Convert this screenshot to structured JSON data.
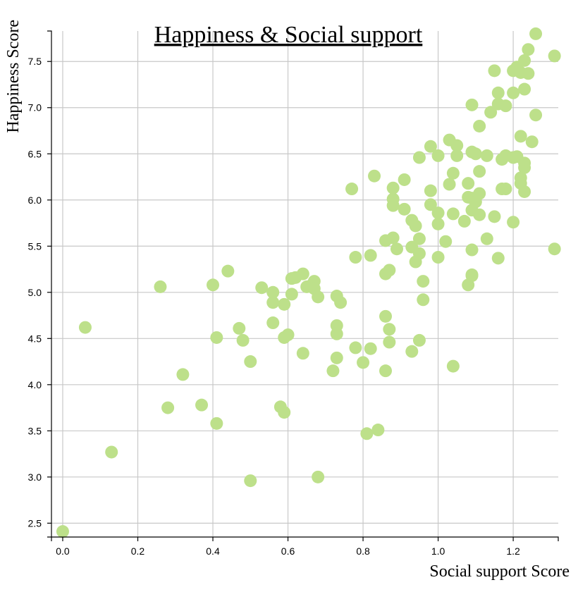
{
  "chart_data": {
    "type": "scatter",
    "title": "Happiness & Social support",
    "xlabel": "Social support Score",
    "ylabel": "Happiness Score",
    "xlim": [
      -0.03,
      1.32
    ],
    "ylim": [
      2.35,
      7.83
    ],
    "x_ticks": [
      "0.0",
      "0.2",
      "0.4",
      "0.6",
      "0.8",
      "1.0",
      "1.2"
    ],
    "y_ticks": [
      "2.5",
      "3.0",
      "3.5",
      "4.0",
      "4.5",
      "5.0",
      "5.5",
      "6.0",
      "6.5",
      "7.0",
      "7.5"
    ],
    "x_tick_values": [
      0.0,
      0.2,
      0.4,
      0.6,
      0.8,
      1.0,
      1.2
    ],
    "y_tick_values": [
      2.5,
      3.0,
      3.5,
      4.0,
      4.5,
      5.0,
      5.5,
      6.0,
      6.5,
      7.0,
      7.5
    ],
    "grid": true,
    "point_color": "#bde08a",
    "points": [
      [
        1.26,
        7.8
      ],
      [
        1.31,
        7.56
      ],
      [
        1.24,
        7.63
      ],
      [
        1.23,
        7.51
      ],
      [
        1.21,
        7.44
      ],
      [
        1.2,
        7.4
      ],
      [
        1.22,
        7.38
      ],
      [
        1.24,
        7.37
      ],
      [
        1.15,
        7.4
      ],
      [
        1.23,
        7.2
      ],
      [
        1.2,
        7.16
      ],
      [
        1.16,
        7.16
      ],
      [
        1.16,
        7.04
      ],
      [
        1.18,
        7.02
      ],
      [
        1.09,
        7.03
      ],
      [
        1.14,
        6.95
      ],
      [
        1.26,
        6.92
      ],
      [
        1.11,
        6.8
      ],
      [
        1.22,
        6.69
      ],
      [
        1.25,
        6.63
      ],
      [
        1.03,
        6.65
      ],
      [
        1.05,
        6.59
      ],
      [
        0.98,
        6.58
      ],
      [
        1.09,
        6.52
      ],
      [
        1.1,
        6.5
      ],
      [
        1.13,
        6.48
      ],
      [
        1.18,
        6.48
      ],
      [
        1.21,
        6.47
      ],
      [
        1.2,
        6.46
      ],
      [
        1.17,
        6.44
      ],
      [
        0.95,
        6.46
      ],
      [
        1.0,
        6.48
      ],
      [
        1.05,
        6.48
      ],
      [
        1.23,
        6.4
      ],
      [
        1.23,
        6.35
      ],
      [
        1.11,
        6.31
      ],
      [
        1.04,
        6.29
      ],
      [
        0.83,
        6.26
      ],
      [
        1.22,
        6.24
      ],
      [
        1.22,
        6.18
      ],
      [
        0.91,
        6.22
      ],
      [
        1.08,
        6.18
      ],
      [
        1.03,
        6.17
      ],
      [
        0.88,
        6.13
      ],
      [
        0.77,
        6.12
      ],
      [
        0.98,
        6.1
      ],
      [
        1.18,
        6.12
      ],
      [
        1.17,
        6.12
      ],
      [
        1.23,
        6.09
      ],
      [
        1.11,
        6.07
      ],
      [
        1.08,
        6.03
      ],
      [
        1.09,
        6.02
      ],
      [
        1.1,
        5.98
      ],
      [
        0.88,
        6.01
      ],
      [
        0.88,
        5.94
      ],
      [
        0.98,
        5.95
      ],
      [
        0.91,
        5.9
      ],
      [
        1.09,
        5.89
      ],
      [
        1.0,
        5.86
      ],
      [
        1.04,
        5.85
      ],
      [
        1.11,
        5.84
      ],
      [
        1.15,
        5.82
      ],
      [
        1.07,
        5.77
      ],
      [
        0.93,
        5.78
      ],
      [
        0.94,
        5.72
      ],
      [
        1.0,
        5.74
      ],
      [
        1.2,
        5.76
      ],
      [
        0.95,
        5.58
      ],
      [
        0.88,
        5.59
      ],
      [
        0.86,
        5.56
      ],
      [
        1.13,
        5.58
      ],
      [
        1.02,
        5.55
      ],
      [
        0.93,
        5.49
      ],
      [
        0.89,
        5.47
      ],
      [
        1.09,
        5.46
      ],
      [
        1.31,
        5.47
      ],
      [
        0.95,
        5.42
      ],
      [
        0.82,
        5.4
      ],
      [
        0.78,
        5.38
      ],
      [
        1.0,
        5.38
      ],
      [
        1.16,
        5.37
      ],
      [
        0.94,
        5.33
      ],
      [
        0.87,
        5.24
      ],
      [
        0.86,
        5.2
      ],
      [
        1.09,
        5.19
      ],
      [
        1.09,
        5.18
      ],
      [
        0.44,
        5.23
      ],
      [
        0.64,
        5.2
      ],
      [
        0.62,
        5.16
      ],
      [
        0.61,
        5.15
      ],
      [
        0.67,
        5.12
      ],
      [
        0.96,
        5.12
      ],
      [
        0.66,
        5.07
      ],
      [
        1.08,
        5.08
      ],
      [
        0.65,
        5.06
      ],
      [
        0.26,
        5.06
      ],
      [
        0.4,
        5.08
      ],
      [
        0.53,
        5.05
      ],
      [
        0.67,
        5.04
      ],
      [
        0.56,
        5.0
      ],
      [
        0.61,
        4.98
      ],
      [
        0.68,
        4.95
      ],
      [
        0.73,
        4.96
      ],
      [
        0.74,
        4.89
      ],
      [
        0.56,
        4.89
      ],
      [
        0.59,
        4.87
      ],
      [
        0.96,
        4.92
      ],
      [
        0.86,
        4.74
      ],
      [
        0.56,
        4.67
      ],
      [
        0.73,
        4.64
      ],
      [
        0.06,
        4.62
      ],
      [
        0.47,
        4.61
      ],
      [
        0.87,
        4.6
      ],
      [
        0.6,
        4.54
      ],
      [
        0.73,
        4.55
      ],
      [
        0.41,
        4.51
      ],
      [
        0.59,
        4.51
      ],
      [
        0.48,
        4.48
      ],
      [
        0.95,
        4.48
      ],
      [
        0.87,
        4.46
      ],
      [
        0.78,
        4.4
      ],
      [
        0.82,
        4.39
      ],
      [
        0.93,
        4.36
      ],
      [
        0.64,
        4.34
      ],
      [
        0.73,
        4.29
      ],
      [
        0.5,
        4.25
      ],
      [
        0.8,
        4.24
      ],
      [
        1.04,
        4.2
      ],
      [
        0.72,
        4.15
      ],
      [
        0.86,
        4.15
      ],
      [
        0.32,
        4.11
      ],
      [
        0.58,
        3.76
      ],
      [
        0.28,
        3.75
      ],
      [
        0.37,
        3.78
      ],
      [
        0.59,
        3.7
      ],
      [
        0.41,
        3.58
      ],
      [
        0.84,
        3.51
      ],
      [
        0.81,
        3.47
      ],
      [
        0.13,
        3.27
      ],
      [
        0.68,
        3.0
      ],
      [
        0.5,
        2.96
      ],
      [
        0.0,
        2.41
      ]
    ]
  }
}
